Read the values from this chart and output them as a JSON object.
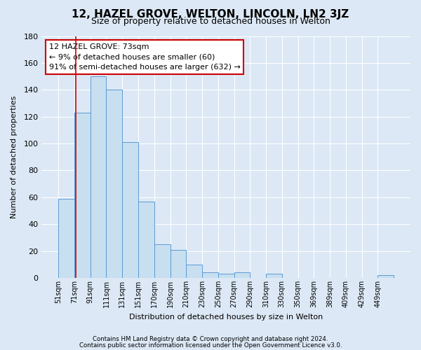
{
  "title": "12, HAZEL GROVE, WELTON, LINCOLN, LN2 3JZ",
  "subtitle": "Size of property relative to detached houses in Welton",
  "xlabel": "Distribution of detached houses by size in Welton",
  "ylabel": "Number of detached properties",
  "bar_labels": [
    "51sqm",
    "71sqm",
    "91sqm",
    "111sqm",
    "131sqm",
    "151sqm",
    "170sqm",
    "190sqm",
    "210sqm",
    "230sqm",
    "250sqm",
    "270sqm",
    "290sqm",
    "310sqm",
    "330sqm",
    "350sqm",
    "369sqm",
    "389sqm",
    "409sqm",
    "429sqm",
    "449sqm"
  ],
  "bar_heights": [
    59,
    123,
    150,
    140,
    101,
    57,
    25,
    21,
    10,
    4,
    3,
    4,
    0,
    3,
    0,
    0,
    0,
    0,
    0,
    0,
    2
  ],
  "bar_color": "#c8dff0",
  "bar_edge_color": "#5b9bd5",
  "ylim": [
    0,
    180
  ],
  "yticks": [
    0,
    20,
    40,
    60,
    80,
    100,
    120,
    140,
    160,
    180
  ],
  "property_line_color": "#cc0000",
  "annotation_line1": "12 HAZEL GROVE: 73sqm",
  "annotation_line2": "← 9% of detached houses are smaller (60)",
  "annotation_line3": "91% of semi-detached houses are larger (632) →",
  "annotation_box_color": "#ffffff",
  "annotation_box_edge": "#cc0000",
  "footnote1": "Contains HM Land Registry data © Crown copyright and database right 2024.",
  "footnote2": "Contains public sector information licensed under the Open Government Licence v3.0.",
  "background_color": "#dce8f5",
  "plot_bg_color": "#dce8f5",
  "grid_color": "#ffffff",
  "title_fontsize": 11,
  "subtitle_fontsize": 9
}
